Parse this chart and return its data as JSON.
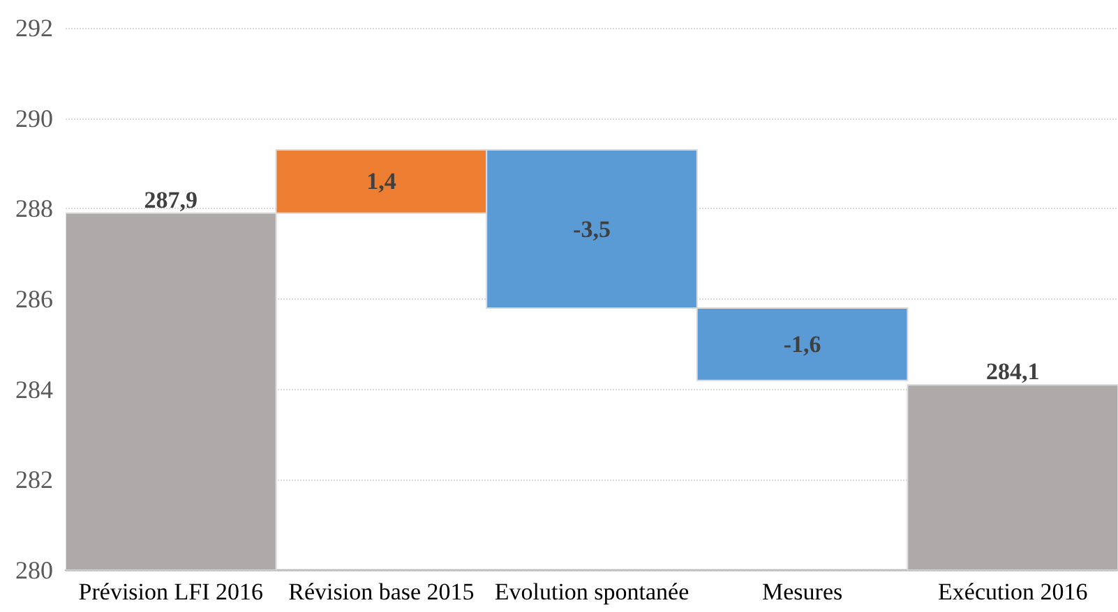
{
  "chart_data": {
    "type": "bar",
    "categories": [
      "Prévision LFI 2016",
      "Révision base 2015",
      "Evolution spontanée",
      "Mesures",
      "Exécution 2016"
    ],
    "values": [
      287.9,
      1.4,
      -3.5,
      -1.6,
      284.1
    ],
    "base": [
      null,
      287.9,
      289.3,
      285.8,
      null
    ],
    "colors": [
      "#aeaaaa",
      "#ed7d31",
      "#5b9bd5",
      "#5b9bd5",
      "#aeaaaa"
    ],
    "value_labels": [
      "287,9",
      "1,4",
      "-3,5",
      "-1,6",
      "284,1"
    ],
    "ylim": [
      280,
      292
    ],
    "yticks": [
      280,
      282,
      284,
      286,
      288,
      290,
      292
    ],
    "grid": "y"
  }
}
